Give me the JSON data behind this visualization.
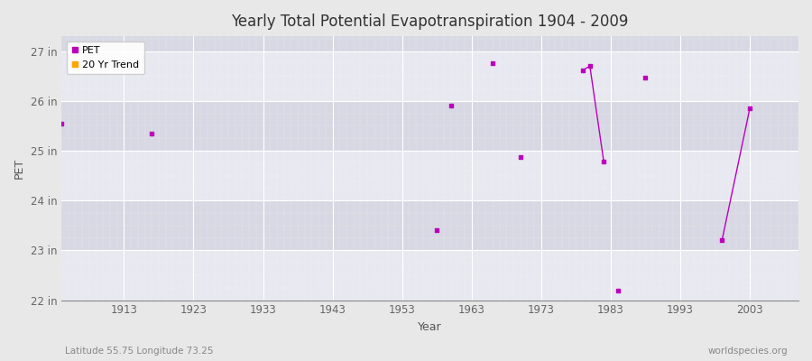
{
  "title": "Yearly Total Potential Evapotranspiration 1904 - 2009",
  "xlabel": "Year",
  "ylabel": "PET",
  "subtitle_left": "Latitude 55.75 Longitude 73.25",
  "subtitle_right": "worldspecies.org",
  "xlim": [
    1904,
    2010
  ],
  "ylim": [
    22.0,
    27.3
  ],
  "ytick_positions": [
    22,
    23,
    24,
    25,
    26,
    27
  ],
  "ytick_labels": [
    "22 in",
    "23 in",
    "24 in",
    "25 in",
    "26 in",
    "27 in"
  ],
  "xticks": [
    1913,
    1923,
    1933,
    1943,
    1953,
    1963,
    1973,
    1983,
    1993,
    2003
  ],
  "band_colors": [
    "#e8e8f0",
    "#d8d8e4"
  ],
  "outer_bg": "#e8e8e8",
  "grid_color": "#ffffff",
  "grid_minor_color": "#c8c8d8",
  "pet_color": "#bb00bb",
  "trend_color": "#ffa500",
  "pet_points": [
    [
      1904,
      25.55
    ],
    [
      1917,
      25.35
    ],
    [
      1958,
      23.4
    ],
    [
      1960,
      25.9
    ],
    [
      1966,
      26.75
    ],
    [
      1970,
      24.87
    ],
    [
      1979,
      26.62
    ],
    [
      1980,
      26.7
    ],
    [
      1982,
      24.78
    ],
    [
      1984,
      22.2
    ],
    [
      1988,
      26.47
    ],
    [
      1999,
      23.2
    ],
    [
      2003,
      25.85
    ]
  ],
  "pet_lines": [
    [
      [
        1979,
        1980,
        1982
      ],
      [
        26.62,
        26.7,
        24.78
      ]
    ],
    [
      [
        1999,
        2003
      ],
      [
        23.2,
        25.85
      ]
    ]
  ],
  "legend_entries": [
    "PET",
    "20 Yr Trend"
  ]
}
